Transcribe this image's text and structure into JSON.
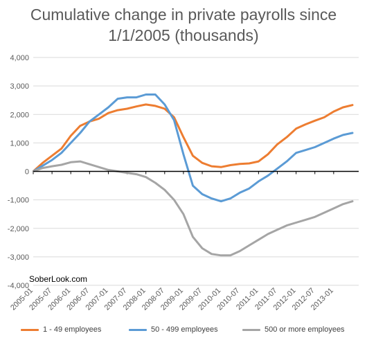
{
  "title_line1": "Cumulative change in private payrolls since",
  "title_line2": "1/1/2005 (thousands)",
  "watermark": "SoberLook.com",
  "chart_data": {
    "type": "line",
    "title": "Cumulative change in private payrolls since 1/1/2005 (thousands)",
    "xlabel": "",
    "ylabel": "",
    "ylim": [
      -4000,
      4000
    ],
    "yticks": [
      4000,
      3000,
      2000,
      1000,
      0,
      -1000,
      -2000,
      -3000,
      -4000
    ],
    "ytick_labels": [
      "4,000",
      "3,000",
      "2,000",
      "1,000",
      "0",
      "-1,000",
      "-2,000",
      "-3,000",
      "-4,000"
    ],
    "xticks": [
      "2005-01",
      "2005-07",
      "2006-01",
      "2006-07",
      "2007-01",
      "2007-07",
      "2008-01",
      "2008-07",
      "2009-01",
      "2009-07",
      "2010-01",
      "2010-07",
      "2011-01",
      "2011-07",
      "2012-01",
      "2012-07",
      "2013-01"
    ],
    "x_start": "2005-01",
    "x_end": "2013-09",
    "grid": "horizontal",
    "legend_position": "bottom",
    "series": [
      {
        "name": "1 - 49 employees",
        "color": "#ED7D31",
        "points": [
          [
            "2005-01",
            0
          ],
          [
            "2005-04",
            300
          ],
          [
            "2005-07",
            550
          ],
          [
            "2005-10",
            800
          ],
          [
            "2006-01",
            1250
          ],
          [
            "2006-04",
            1600
          ],
          [
            "2006-07",
            1750
          ],
          [
            "2006-10",
            1850
          ],
          [
            "2007-01",
            2050
          ],
          [
            "2007-04",
            2150
          ],
          [
            "2007-07",
            2200
          ],
          [
            "2007-10",
            2280
          ],
          [
            "2008-01",
            2350
          ],
          [
            "2008-04",
            2300
          ],
          [
            "2008-07",
            2200
          ],
          [
            "2008-10",
            1900
          ],
          [
            "2009-01",
            1200
          ],
          [
            "2009-04",
            550
          ],
          [
            "2009-07",
            300
          ],
          [
            "2009-10",
            180
          ],
          [
            "2010-01",
            150
          ],
          [
            "2010-04",
            220
          ],
          [
            "2010-07",
            260
          ],
          [
            "2010-10",
            280
          ],
          [
            "2011-01",
            350
          ],
          [
            "2011-04",
            600
          ],
          [
            "2011-07",
            950
          ],
          [
            "2011-10",
            1200
          ],
          [
            "2012-01",
            1500
          ],
          [
            "2012-04",
            1650
          ],
          [
            "2012-07",
            1780
          ],
          [
            "2012-10",
            1900
          ],
          [
            "2013-01",
            2100
          ],
          [
            "2013-04",
            2250
          ],
          [
            "2013-07",
            2330
          ]
        ]
      },
      {
        "name": "50 - 499 employees",
        "color": "#5B9BD5",
        "points": [
          [
            "2005-01",
            0
          ],
          [
            "2005-04",
            200
          ],
          [
            "2005-07",
            400
          ],
          [
            "2005-10",
            650
          ],
          [
            "2006-01",
            1000
          ],
          [
            "2006-04",
            1350
          ],
          [
            "2006-07",
            1750
          ],
          [
            "2006-10",
            2000
          ],
          [
            "2007-01",
            2250
          ],
          [
            "2007-04",
            2550
          ],
          [
            "2007-07",
            2600
          ],
          [
            "2007-10",
            2600
          ],
          [
            "2008-01",
            2700
          ],
          [
            "2008-04",
            2700
          ],
          [
            "2008-07",
            2350
          ],
          [
            "2008-10",
            1800
          ],
          [
            "2009-01",
            600
          ],
          [
            "2009-04",
            -500
          ],
          [
            "2009-07",
            -800
          ],
          [
            "2009-10",
            -950
          ],
          [
            "2010-01",
            -1050
          ],
          [
            "2010-04",
            -950
          ],
          [
            "2010-07",
            -750
          ],
          [
            "2010-10",
            -600
          ],
          [
            "2011-01",
            -350
          ],
          [
            "2011-04",
            -150
          ],
          [
            "2011-07",
            100
          ],
          [
            "2011-10",
            350
          ],
          [
            "2012-01",
            650
          ],
          [
            "2012-04",
            750
          ],
          [
            "2012-07",
            850
          ],
          [
            "2012-10",
            1000
          ],
          [
            "2013-01",
            1150
          ],
          [
            "2013-04",
            1280
          ],
          [
            "2013-07",
            1350
          ]
        ]
      },
      {
        "name": "500 or more employees",
        "color": "#A5A5A5",
        "points": [
          [
            "2005-01",
            0
          ],
          [
            "2005-04",
            120
          ],
          [
            "2005-07",
            180
          ],
          [
            "2005-10",
            230
          ],
          [
            "2006-01",
            320
          ],
          [
            "2006-04",
            350
          ],
          [
            "2006-07",
            250
          ],
          [
            "2006-10",
            150
          ],
          [
            "2007-01",
            50
          ],
          [
            "2007-04",
            0
          ],
          [
            "2007-07",
            -50
          ],
          [
            "2007-10",
            -100
          ],
          [
            "2008-01",
            -200
          ],
          [
            "2008-04",
            -400
          ],
          [
            "2008-07",
            -650
          ],
          [
            "2008-10",
            -1000
          ],
          [
            "2009-01",
            -1500
          ],
          [
            "2009-04",
            -2300
          ],
          [
            "2009-07",
            -2700
          ],
          [
            "2009-10",
            -2900
          ],
          [
            "2010-01",
            -2950
          ],
          [
            "2010-04",
            -2950
          ],
          [
            "2010-07",
            -2800
          ],
          [
            "2010-10",
            -2600
          ],
          [
            "2011-01",
            -2400
          ],
          [
            "2011-04",
            -2200
          ],
          [
            "2011-07",
            -2050
          ],
          [
            "2011-10",
            -1900
          ],
          [
            "2012-01",
            -1800
          ],
          [
            "2012-04",
            -1700
          ],
          [
            "2012-07",
            -1600
          ],
          [
            "2012-10",
            -1450
          ],
          [
            "2013-01",
            -1300
          ],
          [
            "2013-04",
            -1150
          ],
          [
            "2013-07",
            -1050
          ]
        ]
      }
    ]
  }
}
